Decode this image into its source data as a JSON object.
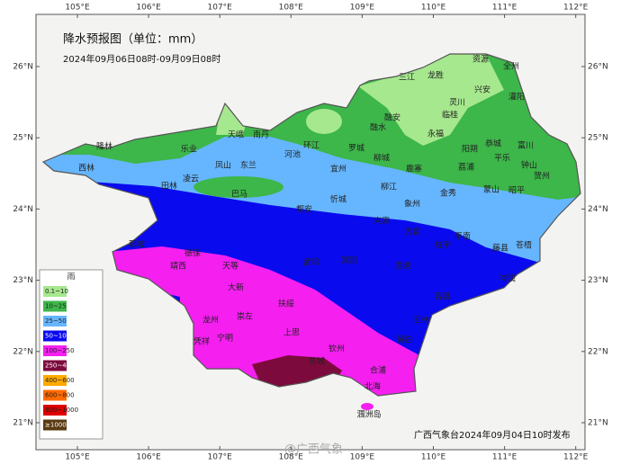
{
  "header": {
    "title": "降水预报图（单位：mm）",
    "subtitle": "2024年09月06日08时-09月09日08时"
  },
  "footer": "广西气象台2024年09月04日10时发布",
  "watermark": "@广西气象",
  "lon_ticks": [
    {
      "value": 105,
      "label": "105°E"
    },
    {
      "value": 106,
      "label": "106°E"
    },
    {
      "value": 107,
      "label": "107°E"
    },
    {
      "value": 108,
      "label": "108°E"
    },
    {
      "value": 109,
      "label": "109°E"
    },
    {
      "value": 110,
      "label": "110°E"
    },
    {
      "value": 111,
      "label": "111°E"
    },
    {
      "value": 112,
      "label": "112°E"
    }
  ],
  "lat_ticks": [
    {
      "value": 21,
      "label": "21°N"
    },
    {
      "value": 22,
      "label": "22°N"
    },
    {
      "value": 23,
      "label": "23°N"
    },
    {
      "value": 24,
      "label": "24°N"
    },
    {
      "value": 25,
      "label": "25°N"
    },
    {
      "value": 26,
      "label": "26°N"
    }
  ],
  "legend": {
    "title": "雨",
    "items": [
      {
        "label": "0.1~10",
        "color": "#a6e88e"
      },
      {
        "label": "10~25",
        "color": "#3db64a"
      },
      {
        "label": "25~50",
        "color": "#66b6ff"
      },
      {
        "label": "50~100",
        "color": "#0a0aef"
      },
      {
        "label": "100~250",
        "color": "#f51ff0"
      },
      {
        "label": "250~400",
        "color": "#7d0a3c"
      },
      {
        "label": "400~600",
        "color": "#ffaa00"
      },
      {
        "label": "600~800",
        "color": "#ff6a00"
      },
      {
        "label": "800~1000",
        "color": "#e00000"
      },
      {
        "label": "≥1000",
        "color": "#5a3a12"
      }
    ]
  },
  "cities": [
    "三江",
    "龙胜",
    "资源",
    "全州",
    "兴安",
    "灌阳",
    "灵川",
    "临桂",
    "融安",
    "融水",
    "永福",
    "阳朔",
    "恭城",
    "富川",
    "平乐",
    "钟山",
    "贺州",
    "荔浦",
    "鹿寨",
    "柳城",
    "罗城",
    "环江",
    "河池",
    "南丹",
    "天峨",
    "乐业",
    "凤山",
    "东兰",
    "隆林",
    "西林",
    "田林",
    "凌云",
    "巴马",
    "宜州",
    "柳江",
    "象州",
    "金秀",
    "蒙山",
    "昭平",
    "忻城",
    "来宾",
    "武宣",
    "桂平",
    "平南",
    "藤县",
    "苍梧",
    "岑溪",
    "都安",
    "那坡",
    "德保",
    "靖西",
    "天等",
    "大新",
    "龙州",
    "崇左",
    "凭祥",
    "宁明",
    "扶绥",
    "武鸣",
    "上思",
    "钦州",
    "防城",
    "北海",
    "合浦",
    "涠洲岛",
    "宾阳",
    "贵港",
    "玉林",
    "博白",
    "容县"
  ]
}
